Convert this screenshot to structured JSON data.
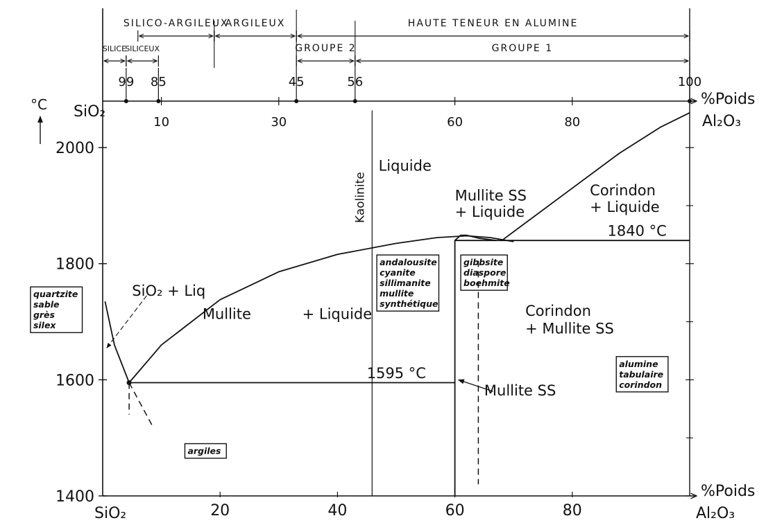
{
  "chart_data": {
    "type": "line",
    "y_unit": "°C",
    "xlim": [
      0,
      100
    ],
    "ylim": [
      1400,
      2080
    ],
    "x_ticks_bottom": [
      "20",
      "40",
      "60",
      "80"
    ],
    "x_ticks_top": [
      "10",
      "30",
      "60",
      "80"
    ],
    "y_ticks": [
      "1400",
      "1600",
      "1800",
      "2000"
    ],
    "x_tick_values": [
      20,
      40,
      60,
      80
    ],
    "x_top_tick_values": [
      10,
      30,
      60,
      80
    ],
    "y_tick_values": [
      1400,
      1600,
      1800,
      2000
    ],
    "x_end_bottom_label": "%Poids",
    "x_end_top_label": "%Poids",
    "x_left_bottom_label": "SiO₂",
    "x_left_top_label": "SiO₂",
    "x_right_bottom_label": "Al₂O₃",
    "x_right_top_label": "Al₂O₃",
    "top_scale_marks": [
      {
        "label": "99",
        "x": 4
      },
      {
        "label": "85",
        "x": 9.5
      },
      {
        "label": "45",
        "x": 33
      },
      {
        "label": "56",
        "x": 43
      },
      {
        "label": "100",
        "x": 100
      }
    ],
    "classification_row1": [
      {
        "label": "SILICO-ARGILEUX",
        "from": 6,
        "to": 19
      },
      {
        "label": "ARGILEUX",
        "from": 19,
        "to": 33
      },
      {
        "label": "HAUTE TENEUR EN ALUMINE",
        "from": 33,
        "to": 100
      }
    ],
    "classification_row2": [
      {
        "label": "SILICE",
        "from": 0,
        "to": 4
      },
      {
        "label": "SILICEUX",
        "from": 4,
        "to": 9.5
      },
      {
        "label": "GROUPE 2",
        "from": 33,
        "to": 43
      },
      {
        "label": "GROUPE 1",
        "from": 43,
        "to": 100
      }
    ],
    "lines": [
      {
        "name": "liquidus-mullite",
        "points": [
          [
            0.4,
            1735
          ],
          [
            2,
            1660
          ],
          [
            4.5,
            1595
          ],
          [
            10,
            1660
          ],
          [
            20,
            1738
          ],
          [
            30,
            1786
          ],
          [
            40,
            1816
          ],
          [
            50,
            1835
          ],
          [
            57,
            1845
          ],
          [
            62,
            1848
          ],
          [
            66,
            1845
          ],
          [
            70,
            1838
          ]
        ]
      },
      {
        "name": "liquidus-corindon",
        "points": [
          [
            68,
            1840
          ],
          [
            72,
            1870
          ],
          [
            80,
            1930
          ],
          [
            88,
            1990
          ],
          [
            95,
            2035
          ],
          [
            100,
            2060
          ]
        ]
      },
      {
        "name": "mullite-ss-boundary",
        "points": [
          [
            60,
            1400
          ],
          [
            60,
            1840
          ],
          [
            61,
            1849
          ],
          [
            62,
            1849
          ],
          [
            64,
            1844
          ],
          [
            67,
            1840
          ]
        ]
      },
      {
        "name": "eutectic-1595",
        "points": [
          [
            4.5,
            1595
          ],
          [
            60,
            1595
          ]
        ]
      },
      {
        "name": "peritectic-1840",
        "points": [
          [
            60,
            1840
          ],
          [
            100,
            1840
          ]
        ]
      },
      {
        "name": "kaolinite",
        "points": [
          [
            45.9,
            1400
          ],
          [
            45.9,
            2064
          ]
        ]
      }
    ],
    "dashed_lines": [
      {
        "points": [
          [
            4.5,
            1595
          ],
          [
            4.5,
            1540
          ]
        ]
      },
      {
        "points": [
          [
            4.5,
            1595
          ],
          [
            8.5,
            1520
          ]
        ]
      },
      {
        "points": [
          [
            64,
            1805
          ],
          [
            64,
            1420
          ]
        ]
      }
    ],
    "labels": [
      {
        "text": "Liquide",
        "x": 47,
        "y": 1960
      },
      {
        "text": "Kaolinite",
        "x": 44.5,
        "y": 1870
      },
      {
        "text": "Mullite SS",
        "x": 60,
        "y": 1909
      },
      {
        "text": "+ Liquide",
        "x": 60,
        "y": 1881
      },
      {
        "text": "Corindon",
        "x": 83,
        "y": 1918
      },
      {
        "text": "+ Liquide",
        "x": 83,
        "y": 1889
      },
      {
        "text": "1840 °C",
        "x": 86,
        "y": 1848
      },
      {
        "text": "SiO₂ + Liq",
        "x": 5,
        "y": 1745
      },
      {
        "text": "Mullite",
        "x": 17,
        "y": 1705
      },
      {
        "text": "+ Liquide",
        "x": 34,
        "y": 1705
      },
      {
        "text": "Corindon",
        "x": 72,
        "y": 1710
      },
      {
        "text": "+ Mullite SS",
        "x": 72,
        "y": 1680
      },
      {
        "text": "1595 °C",
        "x": 45,
        "y": 1603
      },
      {
        "text": "Mullite SS",
        "x": 65,
        "y": 1573
      }
    ],
    "boxes": [
      {
        "lines": [
          "quartzite",
          "sable",
          "grès",
          "silex"
        ],
        "x": -12.3,
        "y": 1760
      },
      {
        "lines": [
          "andalousite",
          "cyanite",
          "sillimanite",
          "mullite",
          "synthétique"
        ],
        "x": 46.7,
        "y": 1815
      },
      {
        "lines": [
          "gibbsite",
          "diaspore",
          "boehmite"
        ],
        "x": 61,
        "y": 1815
      },
      {
        "lines": [
          "argiles"
        ],
        "x": 14,
        "y": 1490
      },
      {
        "lines": [
          "alumine",
          "tabulaire",
          "corindon"
        ],
        "x": 87.5,
        "y": 1640
      }
    ]
  }
}
